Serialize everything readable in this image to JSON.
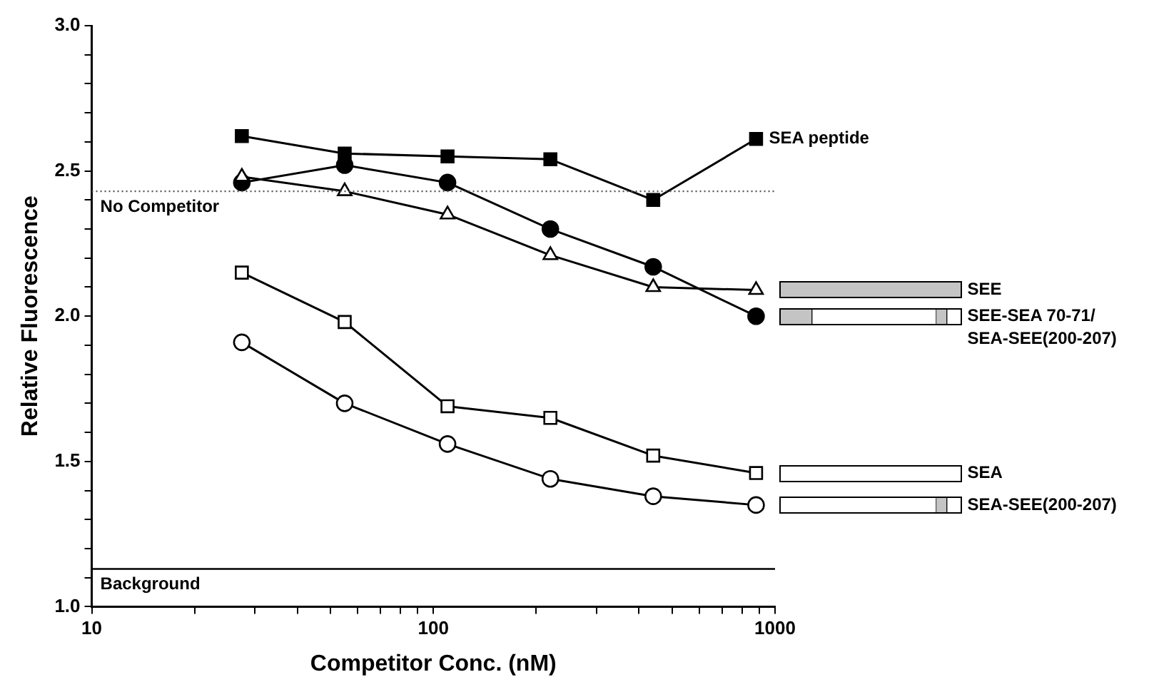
{
  "chart_data": {
    "type": "line",
    "xlabel": "Competitor Conc. (nM)",
    "ylabel": "Relative Fluorescence",
    "x": [
      27.5,
      55,
      110,
      220,
      440,
      880
    ],
    "series": [
      {
        "name": "SEA peptide",
        "color": "#000000",
        "marker": "square",
        "values": [
          2.62,
          2.56,
          2.55,
          2.54,
          2.4,
          2.61
        ]
      },
      {
        "name": "SEE",
        "color": "#000000",
        "marker": "triangle",
        "values": [
          2.48,
          2.43,
          2.35,
          2.21,
          2.1,
          2.09
        ]
      },
      {
        "name": "SEE-SEA 70-71/\nSEA-SEE(200-207)",
        "color": "#000000",
        "marker": "circle",
        "values": [
          2.46,
          2.52,
          2.46,
          2.3,
          2.17,
          2.0
        ]
      },
      {
        "name": "SEA",
        "color": "#000000",
        "marker": "square",
        "values": [
          2.15,
          1.98,
          1.69,
          1.65,
          1.52,
          1.46
        ]
      },
      {
        "name": "SEA-SEE(200-207)",
        "color": "#000000",
        "marker": "circle",
        "values": [
          1.91,
          1.7,
          1.56,
          1.44,
          1.38,
          1.35
        ]
      }
    ],
    "log": "x",
    "xlim": [
      10,
      1000
    ],
    "xticks": [
      10,
      {
        "value": 20,
        "label": null
      },
      {
        "value": 30,
        "label": null
      },
      {
        "value": 40,
        "label": null
      },
      {
        "value": 50,
        "label": null
      },
      {
        "value": 60,
        "label": null
      },
      {
        "value": 70,
        "label": null
      },
      {
        "value": 80,
        "label": null
      },
      {
        "value": 90,
        "label": null
      },
      100,
      {
        "value": 200,
        "label": null
      },
      {
        "value": 300,
        "label": null
      },
      {
        "value": 400,
        "label": null
      },
      {
        "value": 500,
        "label": null
      },
      {
        "value": 600,
        "label": null
      },
      {
        "value": 700,
        "label": null
      },
      {
        "value": 800,
        "label": null
      },
      {
        "value": 900,
        "label": null
      },
      1000
    ],
    "ylim": [
      1,
      3
    ],
    "yticks": [
      {
        "value": 1,
        "label": "1.0"
      },
      {
        "value": 1.1,
        "label": null
      },
      {
        "value": 1.2,
        "label": null
      },
      {
        "value": 1.3,
        "label": null
      },
      {
        "value": 1.4,
        "label": null
      },
      {
        "value": 1.5,
        "label": "1.5"
      },
      {
        "value": 1.6,
        "label": null
      },
      {
        "value": 1.7,
        "label": null
      },
      {
        "value": 1.8,
        "label": null
      },
      {
        "value": 1.9,
        "label": null
      },
      {
        "value": 2,
        "label": "2.0"
      },
      {
        "value": 2.1,
        "label": null
      },
      {
        "value": 2.2,
        "label": null
      },
      {
        "value": 2.3,
        "label": null
      },
      {
        "value": 2.4,
        "label": null
      },
      {
        "value": 2.5,
        "label": "2.5"
      },
      {
        "value": 2.6,
        "label": null
      },
      {
        "value": 2.7,
        "label": null
      },
      {
        "value": 2.8,
        "label": null
      },
      {
        "value": 2.9,
        "label": null
      },
      {
        "value": 3,
        "label": "3.0"
      }
    ],
    "ref_lines": [
      {
        "axis": "y",
        "value": 2.43,
        "label": "No Competitor",
        "line_style": "dotted",
        "color": "#555555"
      },
      {
        "axis": "y",
        "value": 1.13,
        "label": "Background",
        "line_style": "solid",
        "color": "#000000"
      }
    ],
    "grid": false,
    "legend": false,
    "line_style": "solid"
  }
}
